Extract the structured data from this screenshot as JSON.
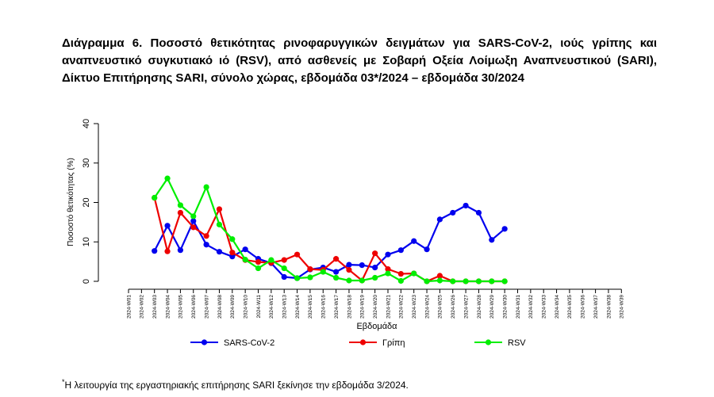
{
  "title": "Διάγραμμα 6. Ποσοστό θετικότητας ρινοφαρυγγικών δειγμάτων για SARS-CoV-2, ιούς γρίπης και αναπνευστικό συγκυτιακό ιό (RSV), από ασθενείς με Σοβαρή Οξεία Λοίμωξη Αναπνευστικού (SARI), Δίκτυο Επιτήρησης SARI, σύνολο χώρας, εβδομάδα 03*/2024 – εβδομάδα 30/2024",
  "footnote": {
    "marker": "*",
    "text": "Η λειτουργία της εργαστηριακής επιτήρησης SARI ξεκίνησε την εβδομάδα 3/2024."
  },
  "chart_data": {
    "type": "line",
    "xlabel": "Εβδομάδα",
    "ylabel": "Ποσοστό θετικότητας (%)",
    "ylim": [
      0,
      40
    ],
    "yticks": [
      "0",
      "10",
      "20",
      "30",
      "40"
    ],
    "categories": [
      "2024-W01",
      "2024-W02",
      "2024-W03",
      "2024-W04",
      "2024-W05",
      "2024-W06",
      "2024-W07",
      "2024-W08",
      "2024-W09",
      "2024-W10",
      "2024-W11",
      "2024-W12",
      "2024-W13",
      "2024-W14",
      "2024-W15",
      "2024-W16",
      "2024-W17",
      "2024-W18",
      "2024-W19",
      "2024-W20",
      "2024-W21",
      "2024-W22",
      "2024-W23",
      "2024-W24",
      "2024-W25",
      "2024-W26",
      "2024-W27",
      "2024-W28",
      "2024-W29",
      "2024-W30",
      "2024-W31",
      "2024-W32",
      "2024-W33",
      "2024-W34",
      "2024-W35",
      "2024-W36",
      "2024-W37",
      "2024-W38",
      "2024-W39"
    ],
    "legend_position": "bottom",
    "series": [
      {
        "name": "SARS-CoV-2",
        "color": "#0000ee",
        "values": [
          null,
          null,
          7.7,
          14.1,
          7.9,
          15.3,
          9.3,
          7.5,
          6.3,
          8.1,
          5.7,
          4.6,
          1.1,
          0.8,
          3.0,
          3.5,
          2.4,
          4.2,
          4.1,
          3.5,
          6.8,
          7.9,
          10.2,
          8.1,
          15.7,
          17.4,
          19.2,
          17.4,
          10.5,
          13.3,
          null,
          null,
          null,
          null,
          null,
          null,
          null,
          null,
          null
        ]
      },
      {
        "name": "Γρίπη",
        "color": "#ee0000",
        "values": [
          null,
          null,
          21.2,
          7.6,
          17.4,
          13.7,
          11.5,
          18.3,
          7.3,
          5.4,
          4.9,
          4.7,
          5.4,
          6.8,
          3.1,
          2.9,
          5.7,
          2.9,
          0.2,
          7.1,
          3.1,
          1.9,
          2.0,
          0.0,
          1.4,
          0.0,
          0.0,
          0.0,
          0.0,
          0.0,
          null,
          null,
          null,
          null,
          null,
          null,
          null,
          null,
          null
        ]
      },
      {
        "name": "RSV",
        "color": "#00ee00",
        "values": [
          null,
          null,
          21.2,
          26.1,
          19.3,
          16.5,
          23.9,
          14.4,
          10.7,
          5.5,
          3.3,
          5.4,
          3.3,
          0.8,
          1.0,
          2.4,
          0.9,
          0.2,
          0.2,
          0.9,
          2.0,
          0.1,
          2.0,
          0.0,
          0.2,
          0.0,
          0.0,
          0.0,
          0.0,
          0.0,
          null,
          null,
          null,
          null,
          null,
          null,
          null,
          null,
          null
        ]
      }
    ]
  }
}
